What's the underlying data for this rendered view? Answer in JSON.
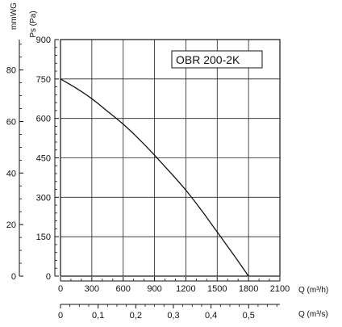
{
  "chart_data": {
    "type": "line",
    "model_label": "OBR 200-2K",
    "x_axis_flow_m3h": {
      "label": "Q (m³/h)",
      "range": [
        0,
        2100
      ],
      "ticks": [
        0,
        300,
        600,
        900,
        1200,
        1500,
        1800,
        2100
      ]
    },
    "x_axis_flow_m3s": {
      "label": "Q (m³/s)",
      "range": [
        0,
        0.583
      ],
      "ticks": [
        0,
        0.1,
        0.2,
        0.3,
        0.4,
        0.5
      ],
      "tick_labels": [
        "0",
        "0,1",
        "0,2",
        "0,3",
        "0,4",
        "0,5"
      ]
    },
    "y_axis_pressure_pa": {
      "label": "Ps (Pa)",
      "range": [
        0,
        900
      ],
      "ticks": [
        0,
        150,
        300,
        450,
        600,
        750,
        900
      ]
    },
    "y_axis_pressure_mmwg": {
      "label": "mmWG",
      "range": [
        0,
        91.8
      ],
      "ticks": [
        0,
        20,
        40,
        60,
        80
      ]
    },
    "grid": true,
    "series": [
      {
        "x": [
          0,
          150,
          300,
          450,
          600,
          750,
          900,
          1050,
          1200,
          1350,
          1500,
          1650,
          1800
        ],
        "y": [
          750,
          715,
          675,
          627,
          578,
          522,
          460,
          395,
          327,
          250,
          168,
          85,
          0
        ]
      }
    ]
  }
}
